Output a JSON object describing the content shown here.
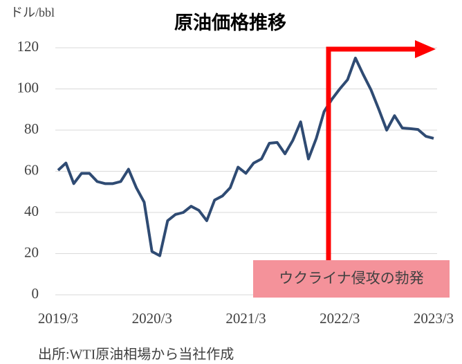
{
  "chart_data": {
    "type": "line",
    "title": "原油価格推移",
    "y_label": "ドル/bbl",
    "source": "出所:WTI原油相場から当社作成",
    "annotation": "ウクライナ侵攻の勃発",
    "categories": [
      "2019/3",
      null,
      null,
      null,
      null,
      null,
      null,
      null,
      null,
      null,
      null,
      null,
      "2020/3",
      null,
      null,
      null,
      null,
      null,
      null,
      null,
      null,
      null,
      null,
      null,
      "2021/3",
      null,
      null,
      null,
      null,
      null,
      null,
      null,
      null,
      null,
      null,
      null,
      "2022/3",
      null,
      null,
      null,
      null,
      null,
      null,
      null,
      null,
      null,
      null,
      null,
      "2023/3"
    ],
    "series": [
      {
        "name": "WTI",
        "color": "#2f4b73",
        "values": [
          60.5,
          64,
          54,
          59,
          59,
          55,
          54,
          54,
          55,
          61,
          52,
          45,
          21,
          19,
          36,
          39,
          40,
          43,
          41,
          36,
          46,
          48,
          52,
          62,
          59,
          64,
          66,
          73.6,
          74,
          68.5,
          75,
          84,
          66,
          76,
          89,
          95,
          100,
          104.5,
          115,
          107,
          99.5,
          90,
          80,
          87,
          81,
          80.7,
          80.3,
          77,
          76
        ]
      }
    ],
    "ylim": [
      0,
      120
    ],
    "yticks": [
      0,
      20,
      40,
      60,
      80,
      100,
      120
    ],
    "grid": true
  }
}
